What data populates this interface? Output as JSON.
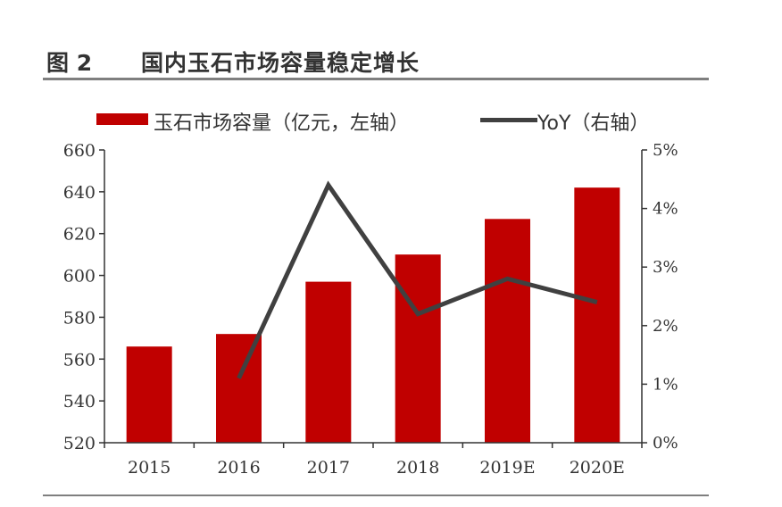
{
  "figure": {
    "number": "图 2",
    "title": "国内玉石市场容量稳定增长"
  },
  "chart_data": {
    "type": "bar+line",
    "categories": [
      "2015",
      "2016",
      "2017",
      "2018",
      "2019E",
      "2020E"
    ],
    "series": [
      {
        "name": "玉石市场容量（亿元，左轴）",
        "type": "bar",
        "axis": "left",
        "color": "#c00000",
        "values": [
          566,
          572,
          597,
          610,
          627,
          642
        ]
      },
      {
        "name": "YoY（右轴）",
        "type": "line",
        "axis": "right",
        "color": "#404040",
        "values": [
          null,
          1.1,
          4.4,
          2.2,
          2.8,
          2.4
        ]
      }
    ],
    "y_left": {
      "range": [
        520,
        660
      ],
      "ticks": [
        "520",
        "540",
        "560",
        "580",
        "600",
        "620",
        "640",
        "660"
      ]
    },
    "y_right": {
      "range": [
        0,
        5
      ],
      "ticks": [
        "0%",
        "1%",
        "2%",
        "3%",
        "4%",
        "5%"
      ]
    },
    "grid": false,
    "legend_position": "top"
  }
}
